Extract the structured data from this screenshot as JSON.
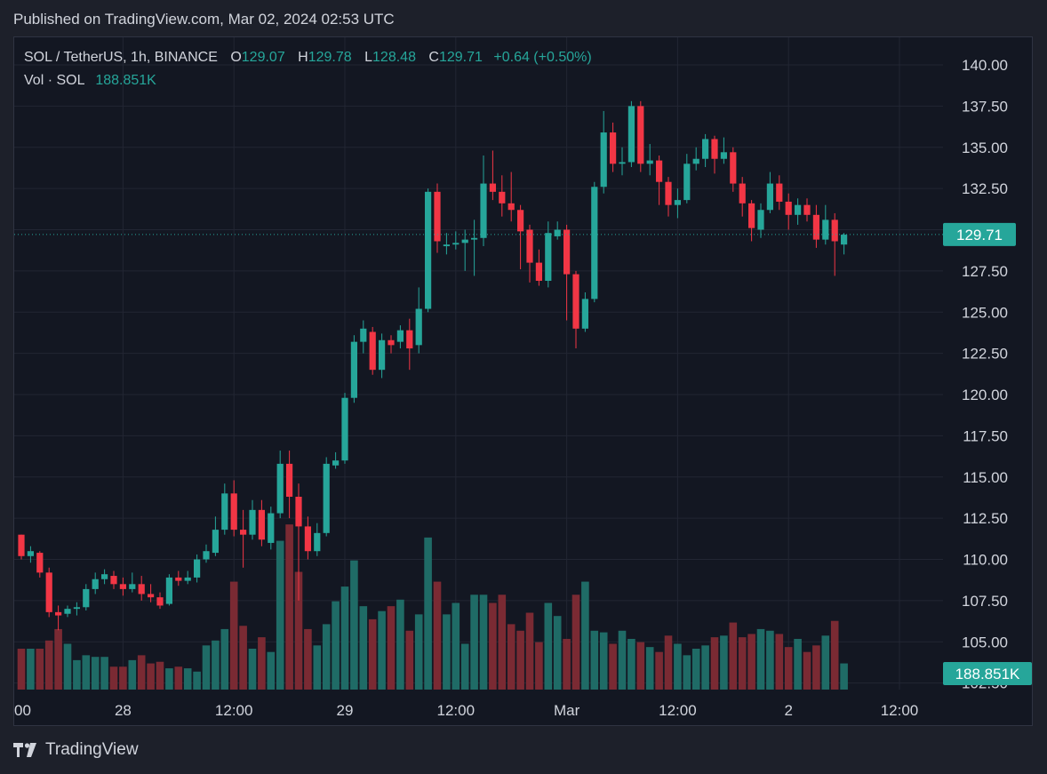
{
  "header": {
    "published": "Published on TradingView.com, Mar 02, 2024 02:53 UTC"
  },
  "legend": {
    "symbol": "SOL / TetherUS, 1h, BINANCE",
    "open_label": "O",
    "open": "129.07",
    "high_label": "H",
    "high": "129.78",
    "low_label": "L",
    "low": "128.48",
    "close_label": "C",
    "close": "129.71",
    "change": "+0.64 (+0.50%)",
    "volume_label": "Vol · SOL",
    "volume": "188.851K"
  },
  "price_badge": "129.71",
  "volume_badge": "188.851K",
  "footer": {
    "brand": "TradingView"
  },
  "colors": {
    "up": "#26a69a",
    "down": "#f23645",
    "up_vol": "#1f6b66",
    "down_vol": "#7a2a33",
    "badge": "#26a69a"
  },
  "chart_data": {
    "type": "candlestick",
    "y_ticks": [
      "140.00",
      "137.50",
      "135.00",
      "132.50",
      "130.00",
      "127.50",
      "125.00",
      "122.50",
      "120.00",
      "117.50",
      "115.00",
      "112.50",
      "110.00",
      "107.50",
      "105.00",
      "102.50"
    ],
    "x_ticks": [
      {
        "label": "00",
        "index": -1
      },
      {
        "label": "28",
        "index": 11
      },
      {
        "label": "12:00",
        "index": 23
      },
      {
        "label": "29",
        "index": 35
      },
      {
        "label": "12:00",
        "index": 47
      },
      {
        "label": "Mar",
        "index": 59
      },
      {
        "label": "12:00",
        "index": 71
      },
      {
        "label": "2",
        "index": 83
      },
      {
        "label": "12:00",
        "index": 95
      }
    ],
    "ylim": [
      102.5,
      140.0
    ],
    "last_close": 129.71,
    "candles": [
      [
        111.5,
        110.2,
        111.5,
        110.0
      ],
      [
        110.2,
        110.5,
        110.8,
        109.8
      ],
      [
        110.4,
        109.2,
        110.5,
        108.9
      ],
      [
        109.2,
        106.8,
        109.5,
        106.5
      ],
      [
        106.8,
        106.6,
        107.2,
        105.7
      ],
      [
        106.7,
        107.0,
        107.2,
        106.5
      ],
      [
        107.0,
        107.1,
        107.4,
        106.6
      ],
      [
        107.1,
        108.2,
        108.5,
        106.9
      ],
      [
        108.2,
        108.8,
        109.2,
        107.9
      ],
      [
        108.8,
        109.1,
        109.4,
        108.5
      ],
      [
        109.0,
        108.5,
        109.3,
        108.2
      ],
      [
        108.5,
        108.2,
        108.9,
        107.8
      ],
      [
        108.2,
        108.5,
        109.2,
        108.0
      ],
      [
        108.5,
        107.9,
        109.0,
        107.5
      ],
      [
        107.9,
        107.7,
        108.5,
        107.4
      ],
      [
        107.7,
        107.2,
        108.0,
        107.0
      ],
      [
        107.3,
        108.9,
        109.1,
        107.2
      ],
      [
        108.9,
        108.7,
        109.3,
        108.4
      ],
      [
        108.7,
        108.9,
        109.3,
        108.5
      ],
      [
        108.9,
        110.0,
        110.3,
        108.6
      ],
      [
        110.0,
        110.5,
        110.9,
        109.8
      ],
      [
        110.4,
        111.8,
        112.6,
        110.2
      ],
      [
        111.8,
        114.0,
        114.6,
        111.5
      ],
      [
        114.0,
        111.8,
        114.8,
        111.4
      ],
      [
        111.8,
        111.5,
        113.0,
        109.5
      ],
      [
        111.5,
        113.0,
        113.6,
        111.2
      ],
      [
        113.0,
        111.2,
        113.6,
        110.8
      ],
      [
        111.0,
        112.8,
        113.2,
        110.6
      ],
      [
        112.8,
        115.8,
        116.6,
        112.5
      ],
      [
        115.8,
        113.8,
        116.6,
        112.5
      ],
      [
        113.8,
        112.0,
        114.6,
        107.5
      ],
      [
        112.0,
        110.5,
        112.6,
        110.0
      ],
      [
        110.5,
        111.6,
        112.2,
        110.2
      ],
      [
        111.6,
        115.8,
        116.2,
        111.4
      ],
      [
        115.7,
        116.0,
        116.5,
        115.5
      ],
      [
        116.0,
        119.8,
        120.1,
        115.8
      ],
      [
        119.8,
        123.2,
        123.6,
        119.5
      ],
      [
        123.2,
        124.0,
        124.5,
        122.5
      ],
      [
        123.8,
        121.5,
        124.1,
        121.2
      ],
      [
        121.5,
        123.3,
        123.7,
        121.0
      ],
      [
        123.3,
        123.0,
        123.6,
        122.5
      ],
      [
        123.2,
        123.9,
        124.2,
        122.8
      ],
      [
        123.9,
        122.8,
        124.6,
        121.5
      ],
      [
        123.0,
        125.2,
        126.5,
        122.5
      ],
      [
        125.2,
        132.3,
        132.5,
        125.0
      ],
      [
        132.3,
        129.3,
        132.8,
        128.6
      ],
      [
        129.0,
        129.1,
        129.8,
        128.5
      ],
      [
        129.1,
        129.2,
        129.9,
        128.8
      ],
      [
        129.2,
        129.4,
        130.0,
        127.5
      ],
      [
        129.4,
        129.5,
        130.6,
        127.2
      ],
      [
        129.5,
        132.8,
        134.5,
        129.0
      ],
      [
        132.8,
        132.3,
        134.8,
        131.8
      ],
      [
        132.3,
        131.6,
        133.3,
        130.8
      ],
      [
        131.6,
        131.2,
        133.5,
        130.5
      ],
      [
        131.2,
        129.9,
        131.5,
        127.6
      ],
      [
        130.0,
        128.0,
        130.3,
        126.8
      ],
      [
        128.0,
        126.9,
        128.8,
        126.6
      ],
      [
        126.9,
        129.8,
        130.5,
        126.5
      ],
      [
        129.6,
        130.0,
        130.5,
        129.4
      ],
      [
        130.0,
        127.3,
        130.3,
        124.5
      ],
      [
        127.3,
        124.0,
        127.5,
        122.8
      ],
      [
        124.0,
        125.8,
        126.2,
        123.8
      ],
      [
        125.8,
        132.6,
        132.9,
        125.6
      ],
      [
        132.6,
        135.9,
        137.2,
        132.2
      ],
      [
        135.9,
        134.0,
        136.5,
        133.5
      ],
      [
        134.0,
        134.1,
        135.0,
        133.3
      ],
      [
        134.1,
        137.5,
        137.8,
        133.8
      ],
      [
        137.5,
        134.0,
        137.8,
        133.5
      ],
      [
        134.0,
        134.2,
        135.2,
        133.3
      ],
      [
        134.2,
        132.9,
        134.5,
        131.5
      ],
      [
        132.9,
        131.5,
        133.2,
        130.8
      ],
      [
        131.5,
        131.8,
        132.5,
        130.7
      ],
      [
        131.8,
        134.0,
        134.6,
        131.6
      ],
      [
        134.0,
        134.3,
        135.0,
        133.6
      ],
      [
        134.3,
        135.5,
        135.8,
        133.8
      ],
      [
        135.5,
        134.3,
        135.7,
        133.4
      ],
      [
        134.3,
        134.7,
        135.6,
        134.0
      ],
      [
        134.7,
        132.8,
        135.0,
        132.3
      ],
      [
        132.8,
        131.6,
        133.2,
        130.8
      ],
      [
        131.6,
        130.1,
        131.8,
        129.3
      ],
      [
        130.0,
        131.2,
        131.6,
        129.5
      ],
      [
        131.2,
        132.8,
        133.5,
        131.0
      ],
      [
        132.8,
        131.7,
        133.3,
        131.2
      ],
      [
        131.7,
        130.9,
        132.2,
        130.0
      ],
      [
        130.9,
        131.5,
        131.9,
        130.3
      ],
      [
        131.5,
        130.9,
        131.9,
        130.5
      ],
      [
        130.9,
        129.4,
        131.5,
        128.9
      ],
      [
        129.4,
        130.6,
        131.5,
        129.1
      ],
      [
        130.6,
        129.3,
        131.0,
        127.2
      ],
      [
        129.1,
        129.7,
        129.8,
        128.5
      ]
    ],
    "volumes": [
      0.25,
      0.25,
      0.25,
      0.3,
      0.37,
      0.28,
      0.18,
      0.21,
      0.2,
      0.2,
      0.14,
      0.14,
      0.18,
      0.21,
      0.16,
      0.17,
      0.13,
      0.14,
      0.13,
      0.11,
      0.27,
      0.3,
      0.37,
      0.66,
      0.39,
      0.25,
      0.32,
      0.23,
      0.91,
      1.01,
      0.72,
      0.37,
      0.27,
      0.4,
      0.54,
      0.63,
      0.79,
      0.51,
      0.43,
      0.48,
      0.51,
      0.55,
      0.36,
      0.46,
      0.93,
      0.66,
      0.46,
      0.53,
      0.28,
      0.58,
      0.58,
      0.53,
      0.58,
      0.4,
      0.36,
      0.47,
      0.29,
      0.53,
      0.45,
      0.31,
      0.58,
      0.66,
      0.36,
      0.35,
      0.28,
      0.36,
      0.31,
      0.29,
      0.26,
      0.23,
      0.33,
      0.28,
      0.21,
      0.25,
      0.27,
      0.32,
      0.33,
      0.41,
      0.32,
      0.34,
      0.37,
      0.36,
      0.34,
      0.26,
      0.31,
      0.23,
      0.27,
      0.33,
      0.42,
      0.16
    ]
  }
}
